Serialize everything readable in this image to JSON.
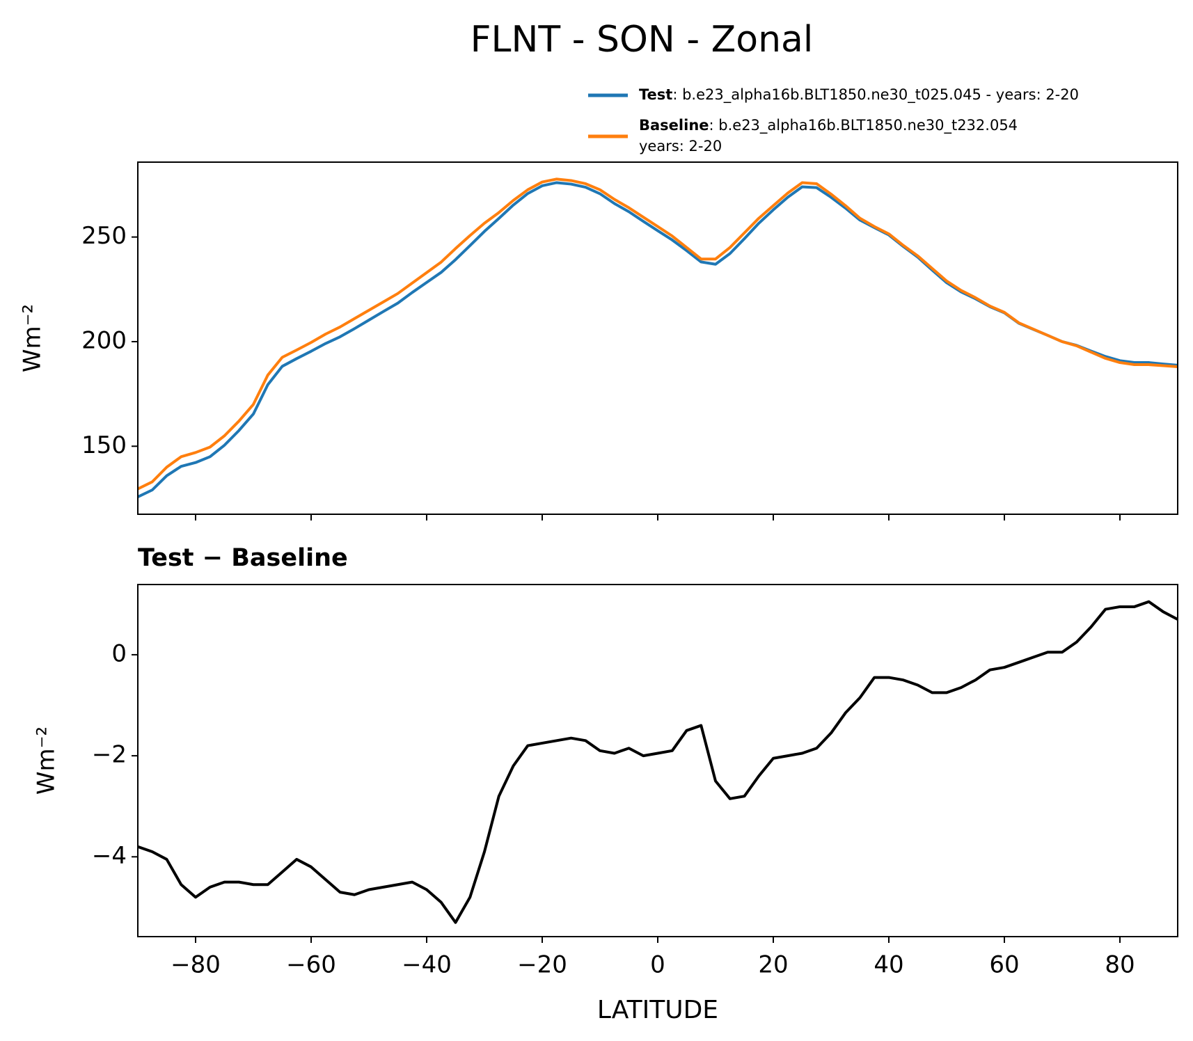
{
  "chart_data": [
    {
      "type": "line",
      "title": "FLNT - SON - Zonal",
      "ylabel": "Wm⁻²",
      "x": [
        -90,
        -87.5,
        -85,
        -82.5,
        -80,
        -77.5,
        -75,
        -72.5,
        -70,
        -67.5,
        -65,
        -62.5,
        -60,
        -57.5,
        -55,
        -52.5,
        -50,
        -47.5,
        -45,
        -42.5,
        -40,
        -37.5,
        -35,
        -32.5,
        -30,
        -27.5,
        -25,
        -22.5,
        -20,
        -17.5,
        -15,
        -12.5,
        -10,
        -7.5,
        -5,
        -2.5,
        0,
        2.5,
        5,
        7.5,
        10,
        12.5,
        15,
        17.5,
        20,
        22.5,
        25,
        27.5,
        30,
        32.5,
        35,
        37.5,
        40,
        42.5,
        45,
        47.5,
        50,
        52.5,
        55,
        57.5,
        60,
        62.5,
        65,
        67.5,
        70,
        72.5,
        75,
        77.5,
        80,
        82.5,
        85,
        87.5,
        90
      ],
      "series": [
        {
          "name": "Test",
          "label_lines": [
            ": b.e23_alpha16b.BLT1850.ne30_t025.045 - years: 2-20"
          ],
          "color": "#1f77b4",
          "values": [
            125.8,
            129.1,
            135.9,
            140.4,
            142.2,
            145.0,
            150.5,
            157.5,
            165.4,
            179.4,
            188.2,
            191.9,
            195.4,
            199.1,
            202.3,
            206.2,
            210.3,
            214.4,
            218.4,
            223.5,
            228.3,
            233.1,
            239.2,
            245.9,
            252.7,
            258.9,
            265.3,
            270.8,
            274.5,
            276.0,
            275.3,
            273.8,
            270.7,
            266.0,
            262.1,
            257.5,
            253.0,
            248.6,
            243.5,
            238.1,
            237.0,
            242.1,
            249.2,
            256.6,
            263.0,
            269.0,
            274.0,
            273.6,
            269.0,
            263.8,
            258.1,
            254.5,
            251.0,
            245.5,
            240.4,
            234.2,
            228.2,
            223.8,
            220.5,
            216.7,
            213.8,
            208.8,
            205.9,
            203.0,
            200.0,
            198.2,
            195.5,
            192.9,
            190.9,
            190.0,
            190.0,
            189.3,
            188.7
          ]
        },
        {
          "name": "Baseline",
          "label_lines": [
            ": b.e23_alpha16b.BLT1850.ne30_t232.054",
            "years: 2-20"
          ],
          "color": "#ff7f0e",
          "values": [
            129.6,
            133,
            140,
            145,
            147,
            149.6,
            155,
            162,
            170,
            184,
            192.5,
            196,
            199.6,
            203.6,
            207,
            211,
            215,
            219,
            223,
            228,
            233,
            238,
            244.5,
            250.7,
            256.6,
            261.7,
            267.5,
            272.6,
            276.3,
            277.7,
            277,
            275.5,
            272.6,
            268,
            264,
            259.5,
            255,
            250.5,
            245,
            239.5,
            239.5,
            245,
            252,
            259,
            265,
            271,
            276,
            275.5,
            270.5,
            265,
            259,
            255,
            251.5,
            246,
            241,
            235,
            229,
            224.5,
            221,
            217,
            214,
            209,
            206,
            203,
            200,
            198,
            195,
            192,
            190,
            189,
            189,
            188.5,
            188
          ]
        }
      ],
      "xlim": [
        -90,
        90
      ],
      "xticks": [
        -80,
        -60,
        -40,
        -20,
        0,
        20,
        40,
        60,
        80
      ],
      "ylim": [
        117.5,
        285.8
      ],
      "yticks": [
        150,
        200,
        250
      ],
      "grid": false
    },
    {
      "type": "line",
      "title": "Test − Baseline",
      "xlabel": "LATITUDE",
      "ylabel": "Wm⁻²",
      "color": "#000000",
      "x": [
        -90,
        -87.5,
        -85,
        -82.5,
        -80,
        -77.5,
        -75,
        -72.5,
        -70,
        -67.5,
        -65,
        -62.5,
        -60,
        -57.5,
        -55,
        -52.5,
        -50,
        -47.5,
        -45,
        -42.5,
        -40,
        -37.5,
        -35,
        -32.5,
        -30,
        -27.5,
        -25,
        -22.5,
        -20,
        -17.5,
        -15,
        -12.5,
        -10,
        -7.5,
        -5,
        -2.5,
        0,
        2.5,
        5,
        7.5,
        10,
        12.5,
        15,
        17.5,
        20,
        22.5,
        25,
        27.5,
        30,
        32.5,
        35,
        37.5,
        40,
        42.5,
        45,
        47.5,
        50,
        52.5,
        55,
        57.5,
        60,
        62.5,
        65,
        67.5,
        70,
        72.5,
        75,
        77.5,
        80,
        82.5,
        85,
        87.5,
        90
      ],
      "values": [
        -3.8,
        -3.9,
        -4.05,
        -4.55,
        -4.8,
        -4.6,
        -4.5,
        -4.5,
        -4.55,
        -4.55,
        -4.3,
        -4.05,
        -4.2,
        -4.45,
        -4.7,
        -4.75,
        -4.65,
        -4.6,
        -4.55,
        -4.5,
        -4.65,
        -4.9,
        -5.3,
        -4.8,
        -3.9,
        -2.8,
        -2.2,
        -1.8,
        -1.75,
        -1.7,
        -1.65,
        -1.7,
        -1.9,
        -1.95,
        -1.85,
        -2.0,
        -1.95,
        -1.9,
        -1.5,
        -1.4,
        -2.5,
        -2.85,
        -2.8,
        -2.4,
        -2.05,
        -2.0,
        -1.95,
        -1.85,
        -1.55,
        -1.15,
        -0.85,
        -0.45,
        -0.45,
        -0.5,
        -0.6,
        -0.75,
        -0.75,
        -0.65,
        -0.5,
        -0.3,
        -0.25,
        -0.15,
        -0.05,
        0.05,
        0.05,
        0.25,
        0.55,
        0.9,
        0.95,
        0.95,
        1.05,
        0.85,
        0.7
      ],
      "xlim": [
        -90,
        90
      ],
      "xticks": [
        {
          "value": -80,
          "label": "−80"
        },
        {
          "value": -60,
          "label": "−60"
        },
        {
          "value": -40,
          "label": "−40"
        },
        {
          "value": -20,
          "label": "−20"
        },
        0,
        20,
        40,
        60,
        80
      ],
      "ylim": [
        -5.58,
        1.39
      ],
      "yticks": [
        {
          "value": -4,
          "label": "−4"
        },
        {
          "value": -2,
          "label": "−2"
        },
        0
      ],
      "grid": false
    }
  ]
}
